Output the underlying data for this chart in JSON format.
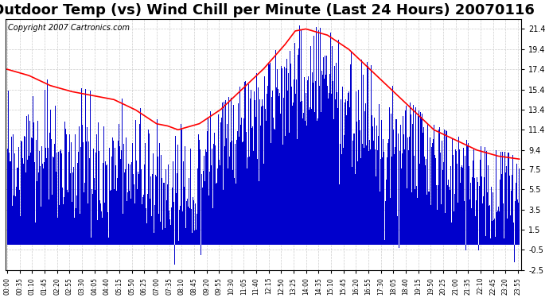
{
  "title": "Outdoor Temp (vs) Wind Chill per Minute (Last 24 Hours) 20070116",
  "copyright": "Copyright 2007 Cartronics.com",
  "ylim": [
    -2.5,
    22.4
  ],
  "yticks": [
    -2.5,
    -0.5,
    1.5,
    3.5,
    5.5,
    7.5,
    9.4,
    11.4,
    13.4,
    15.4,
    17.4,
    19.4,
    21.4
  ],
  "ytick_labels": [
    "-2.5",
    "-0.5",
    "1.5",
    "3.5",
    "5.5",
    "7.5",
    "9.4",
    "11.4",
    "13.4",
    "15.4",
    "17.4",
    "19.4",
    "21.4"
  ],
  "bg_color": "#ffffff",
  "plot_bg_color": "#ffffff",
  "grid_color": "#cccccc",
  "bar_color": "#0000cc",
  "line_color": "#ff0000",
  "title_fontsize": 13,
  "copyright_fontsize": 7,
  "n_points": 1440,
  "x_tick_every": 35,
  "outdoor_t": [
    0,
    1,
    2,
    3,
    4,
    5,
    6,
    7,
    7.5,
    8,
    9,
    10,
    11,
    12,
    13,
    13.5,
    14,
    15,
    16,
    17,
    18,
    19,
    20,
    21,
    22,
    23,
    24
  ],
  "outdoor_v": [
    17.4,
    16.8,
    15.8,
    15.2,
    14.8,
    14.4,
    13.4,
    12.0,
    11.8,
    11.4,
    12.0,
    13.4,
    15.4,
    17.4,
    19.8,
    21.2,
    21.4,
    20.8,
    19.4,
    17.4,
    15.4,
    13.4,
    11.4,
    10.4,
    9.4,
    8.8,
    8.5
  ],
  "wc_t": [
    0,
    1,
    2,
    3,
    4,
    5,
    6,
    7,
    7.5,
    8,
    9,
    10,
    11,
    12,
    13,
    14,
    15,
    16,
    17,
    18,
    19,
    20,
    21,
    22,
    23,
    24
  ],
  "wc_v": [
    10.0,
    9.5,
    8.5,
    8.0,
    7.8,
    7.5,
    7.0,
    6.5,
    6.2,
    6.0,
    7.5,
    9.5,
    12.0,
    14.0,
    15.5,
    15.8,
    14.5,
    13.0,
    11.5,
    10.0,
    9.5,
    8.5,
    7.5,
    6.5,
    5.5,
    5.0
  ]
}
